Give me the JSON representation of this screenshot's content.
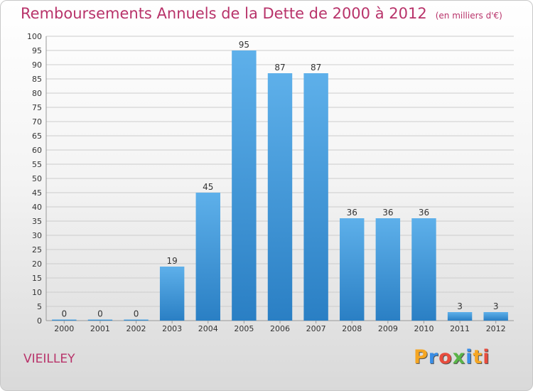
{
  "header": {
    "title": "Remboursements Annuels de la Dette de 2000 à 2012",
    "unit": "(en milliers d'€)"
  },
  "footer": {
    "commune": "VIEILLEY",
    "logo_letters": [
      "P",
      "r",
      "o",
      "x",
      "i",
      "t",
      "i"
    ],
    "logo_colors": [
      "#f5a623",
      "#3a8ee6",
      "#e84c3d",
      "#59b548",
      "#3a8ee6",
      "#f5a623",
      "#e84c3d"
    ]
  },
  "colors": {
    "bar_top": "#5eb0ea",
    "bar_bottom": "#2a7fc4",
    "grid": "#cccccc",
    "axis_text": "#333333"
  },
  "chart_data": {
    "type": "bar",
    "categories": [
      "2000",
      "2001",
      "2002",
      "2003",
      "2004",
      "2005",
      "2006",
      "2007",
      "2008",
      "2009",
      "2010",
      "2011",
      "2012"
    ],
    "values": [
      0,
      0,
      0,
      19,
      45,
      95,
      87,
      87,
      36,
      36,
      36,
      3,
      3
    ],
    "ylim": [
      0,
      100
    ],
    "ytick_step": 5,
    "grid": true,
    "data_labels": true
  }
}
